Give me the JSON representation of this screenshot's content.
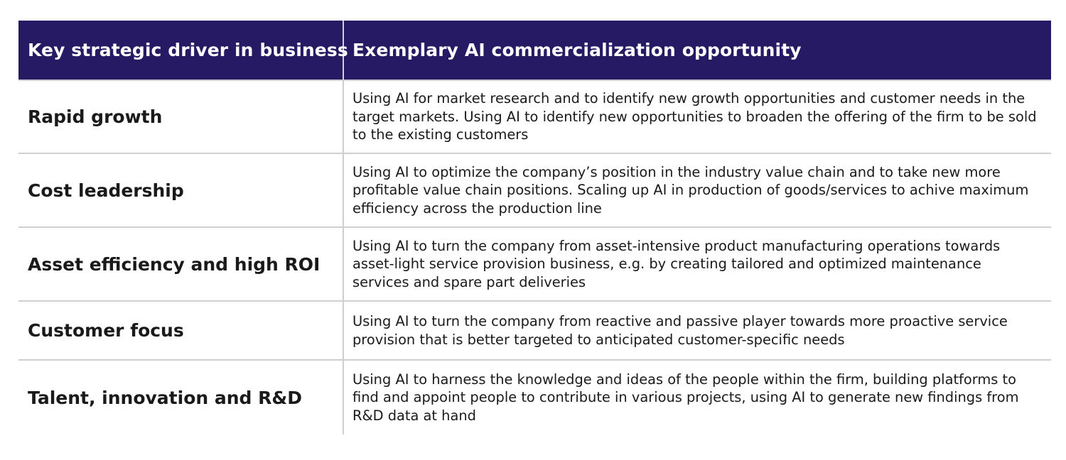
{
  "header": {
    "col1": "Key strategic driver in business",
    "col2": "Exemplary AI commercialization opportunity"
  },
  "rows": [
    {
      "driver": "Rapid growth",
      "opportunity": "Using AI for market research and to identify new growth opportunities and customer needs in the target markets. Using AI to identify new opportunities to broaden the offering of the firm to be sold to the existing customers"
    },
    {
      "driver": "Cost leadership",
      "opportunity": "Using AI to optimize the company’s position in the industry value chain and to take new more profitable value chain positions. Scaling up AI in production of goods/services to achive maximum efficiency across the production line"
    },
    {
      "driver": "Asset efficiency and high ROI",
      "opportunity": "Using AI to turn the company from asset-intensive product manufacturing operations towards asset-light service provision business, e.g. by creating tailored and optimized maintenance services and spare part deliveries"
    },
    {
      "driver": "Customer focus",
      "opportunity": "Using AI to turn the company from reactive and passive player towards more proactive service provision that is better targeted to anticipated customer-specific needs"
    },
    {
      "driver": "Talent, innovation and R&D",
      "opportunity": "Using AI to harness the knowledge and ideas of the people within the firm, building platforms to find and appoint people to contribute in various projects, using AI to generate new findings from R&D data at hand"
    }
  ],
  "colors": {
    "header_bg": "#251a63",
    "header_text": "#ffffff",
    "divider": "#cfcfcf"
  }
}
